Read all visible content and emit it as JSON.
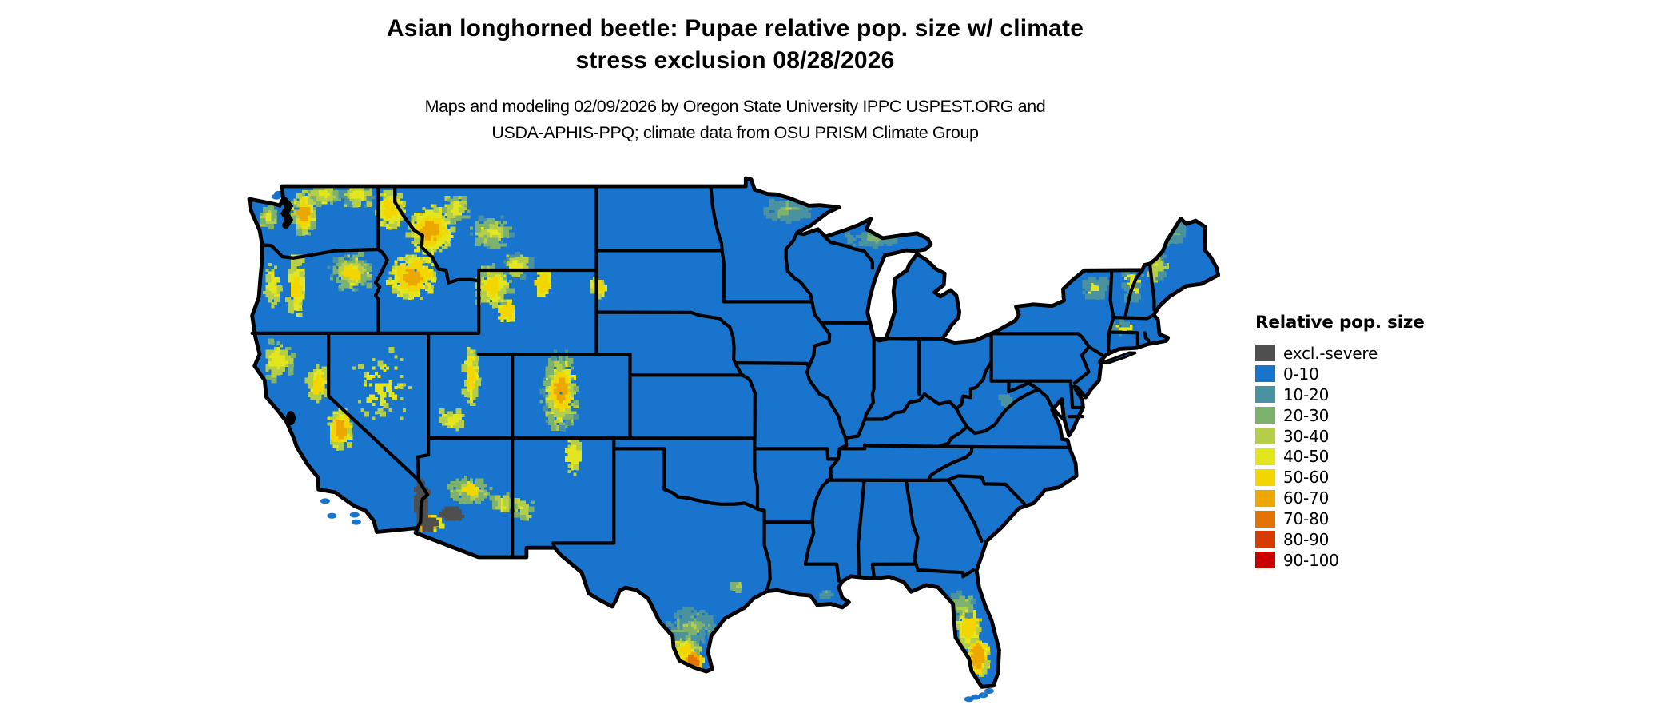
{
  "header": {
    "title_line1": "Asian longhorned beetle: Pupae relative pop. size w/ climate",
    "title_line2": "stress exclusion 08/28/2026",
    "subtitle_line1": "Maps and modeling 02/09/2026 by Oregon State University IPPC USPEST.ORG and",
    "subtitle_line2": "USDA-APHIS-PPQ; climate data from OSU PRISM Climate Group"
  },
  "legend": {
    "title": "Relative pop. size",
    "items": [
      {
        "label": "excl.-severe",
        "color": "#4F4F4F"
      },
      {
        "label": "0-10",
        "color": "#1874CD"
      },
      {
        "label": "10-20",
        "color": "#4A92A0"
      },
      {
        "label": "20-30",
        "color": "#7CB26E"
      },
      {
        "label": "30-40",
        "color": "#B5CE49"
      },
      {
        "label": "40-50",
        "color": "#E3E51E"
      },
      {
        "label": "50-60",
        "color": "#F3D600"
      },
      {
        "label": "60-70",
        "color": "#ECA800"
      },
      {
        "label": "70-80",
        "color": "#E27300"
      },
      {
        "label": "80-90",
        "color": "#D63C00"
      },
      {
        "label": "90-100",
        "color": "#C80000"
      }
    ]
  },
  "map": {
    "background": "#FFFFFF",
    "border_color": "#000000",
    "base_bin": "0-10"
  }
}
